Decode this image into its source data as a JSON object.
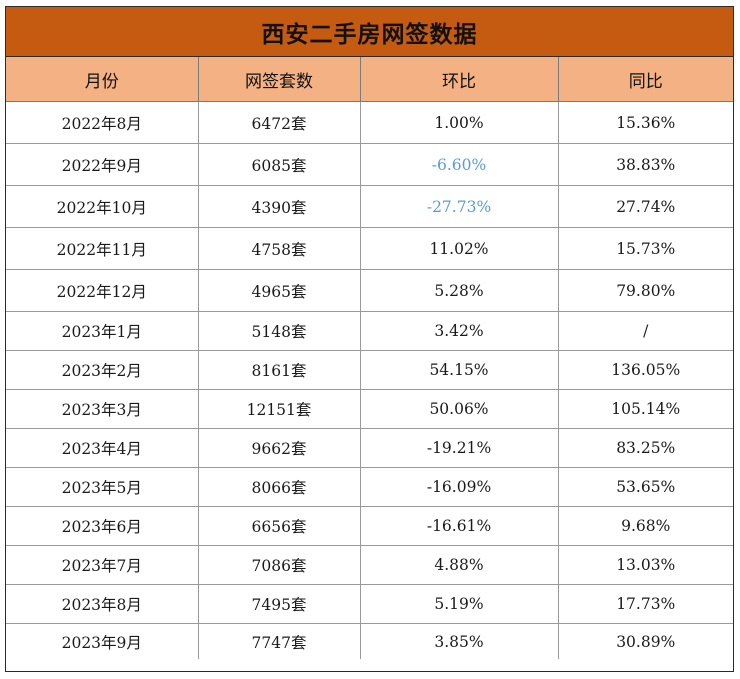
{
  "title": "西安二手房网签数据",
  "columns": [
    "月份",
    "网签套数",
    "环比",
    "同比"
  ],
  "rows": [
    {
      "month": "2022年8月",
      "count": "6472套",
      "mom": "1.00%",
      "yoy": "15.36%"
    },
    {
      "month": "2022年9月",
      "count": "6085套",
      "mom": "-6.60%",
      "yoy": "38.83%"
    },
    {
      "month": "2022年10月",
      "count": "4390套",
      "mom": "-27.73%",
      "yoy": "27.74%"
    },
    {
      "month": "2022年11月",
      "count": "4758套",
      "mom": "11.02%",
      "yoy": "15.73%"
    },
    {
      "month": "2022年12月",
      "count": "4965套",
      "mom": "5.28%",
      "yoy": "79.80%"
    },
    {
      "month": "2023年1月",
      "count": "5148套",
      "mom": "3.42%",
      "yoy": "/"
    },
    {
      "month": "2023年2月",
      "count": "8161套",
      "mom": "54.15%",
      "yoy": "136.05%"
    },
    {
      "month": "2023年3月",
      "count": "12151套",
      "mom": "50.06%",
      "yoy": "105.14%"
    },
    {
      "month": "2023年4月",
      "count": "9662套",
      "mom": "-19.21%",
      "yoy": "83.25%"
    },
    {
      "month": "2023年5月",
      "count": "8066套",
      "mom": "-16.09%",
      "yoy": "53.65%"
    },
    {
      "month": "2023年6月",
      "count": "6656套",
      "mom": "-16.61%",
      "yoy": "9.68%"
    },
    {
      "month": "2023年7月",
      "count": "7086套",
      "mom": "4.88%",
      "yoy": "13.03%"
    },
    {
      "month": "2023年8月",
      "count": "7495套",
      "mom": "5.19%",
      "yoy": "17.73%"
    },
    {
      "month": "2023年9月",
      "count": "7747套",
      "mom": "3.85%",
      "yoy": "30.89%"
    }
  ],
  "colors": {
    "title_bg": "#c55a11",
    "header_bg": "#f4b183",
    "highlight_text": "#5b9bd5"
  },
  "highlighted_mom_rows": [
    1,
    2
  ]
}
